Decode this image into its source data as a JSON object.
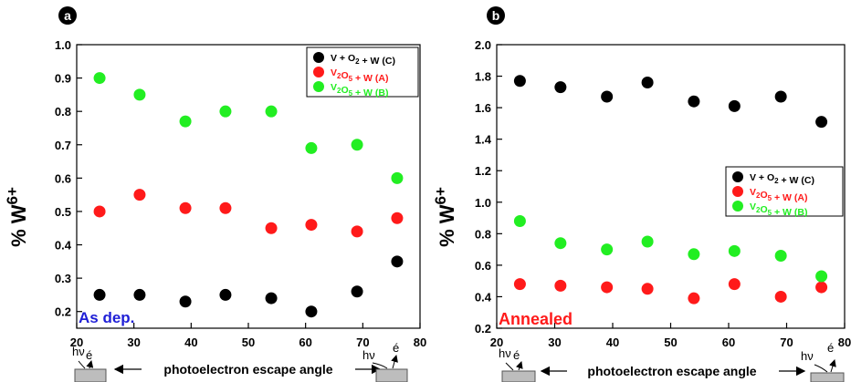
{
  "chart_data": [
    {
      "type": "scatter",
      "panel_label": "a",
      "ylabel": "% W",
      "ylabel_superscript": "6+",
      "xlim": [
        20,
        80
      ],
      "ylim": [
        0.15,
        1.0
      ],
      "x_ticks": [
        20,
        30,
        40,
        50,
        60,
        70,
        80
      ],
      "y_ticks": [
        0.2,
        0.3,
        0.4,
        0.5,
        0.6,
        0.7,
        0.8,
        0.9,
        1.0
      ],
      "y_tick_labels": [
        "0.2",
        "0.3",
        "0.4",
        "0.5",
        "0.6",
        "0.7",
        "0.8",
        "0.9",
        "1.0"
      ],
      "annotation": "As dep.",
      "annotation_color": "#1f1fd6",
      "legend_position": "top-right",
      "x": [
        24,
        31,
        39,
        46,
        54,
        61,
        69,
        76
      ],
      "series": [
        {
          "name": "V + O2 + W (C)",
          "color": "#000000",
          "values": [
            0.25,
            0.25,
            0.23,
            0.25,
            0.24,
            0.2,
            0.26,
            0.35
          ]
        },
        {
          "name": "V2O5 + W (A)",
          "color": "#ff1a1a",
          "values": [
            0.5,
            0.55,
            0.51,
            0.51,
            0.45,
            0.46,
            0.44,
            0.48
          ]
        },
        {
          "name": "V2O5 + W (B)",
          "color": "#22ee22",
          "values": [
            0.9,
            0.85,
            0.77,
            0.8,
            0.8,
            0.69,
            0.7,
            0.6
          ]
        }
      ]
    },
    {
      "type": "scatter",
      "panel_label": "b",
      "ylabel": "% W",
      "ylabel_superscript": "6+",
      "xlim": [
        20,
        80
      ],
      "ylim": [
        0.2,
        2.0
      ],
      "x_ticks": [
        20,
        30,
        40,
        50,
        60,
        70,
        80
      ],
      "y_ticks": [
        0.2,
        0.4,
        0.6,
        0.8,
        1.0,
        1.2,
        1.4,
        1.6,
        1.8,
        2.0
      ],
      "y_tick_labels": [
        "0.2",
        "0.4",
        "0.6",
        "0.8",
        "1.0",
        "1.2",
        "1.4",
        "1.6",
        "1.8",
        "2.0"
      ],
      "annotation": "Annealed",
      "annotation_color": "#ff1a1a",
      "legend_position": "middle-right",
      "x": [
        24,
        31,
        39,
        46,
        54,
        61,
        69,
        76
      ],
      "series": [
        {
          "name": "V + O2 + W (C)",
          "color": "#000000",
          "values": [
            1.77,
            1.73,
            1.67,
            1.76,
            1.64,
            1.61,
            1.67,
            1.51
          ]
        },
        {
          "name": "V2O5 + W (A)",
          "color": "#ff1a1a",
          "values": [
            0.48,
            0.47,
            0.46,
            0.45,
            0.39,
            0.48,
            0.4,
            0.46
          ]
        },
        {
          "name": "V2O5 + W (B)",
          "color": "#22ee22",
          "values": [
            0.88,
            0.74,
            0.7,
            0.75,
            0.67,
            0.69,
            0.66,
            0.53
          ]
        }
      ]
    }
  ],
  "xlabel": "photoelectron escape angle",
  "schematic": {
    "photon": "hν",
    "electron": "é"
  }
}
